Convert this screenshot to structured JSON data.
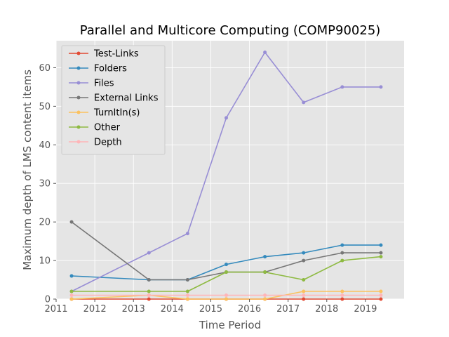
{
  "chart_data": {
    "type": "line",
    "title": "Parallel and Multicore Computing (COMP90025)",
    "xlabel": "Time Period",
    "ylabel": "Maximum depth of LMS content items",
    "xlim": [
      2011,
      2020
    ],
    "ylim": [
      0,
      67
    ],
    "xticks": [
      2011,
      2012,
      2013,
      2014,
      2015,
      2016,
      2017,
      2018,
      2019
    ],
    "yticks": [
      0,
      10,
      20,
      30,
      40,
      50,
      60
    ],
    "grid": true,
    "legend_position": "upper-left",
    "x": [
      2011.4,
      2013.4,
      2014.4,
      2015.4,
      2016.4,
      2017.4,
      2018.4,
      2019.4
    ],
    "series": [
      {
        "name": "Test-Links",
        "color": "#E24A33",
        "values": [
          0,
          0,
          0,
          0,
          0,
          0,
          0,
          0
        ]
      },
      {
        "name": "Folders",
        "color": "#348ABD",
        "values": [
          6,
          5,
          5,
          9,
          11,
          12,
          14,
          14
        ]
      },
      {
        "name": "Files",
        "color": "#988ED5",
        "values": [
          2,
          12,
          17,
          47,
          64,
          51,
          55,
          55
        ]
      },
      {
        "name": "External Links",
        "color": "#777777",
        "values": [
          20,
          5,
          5,
          7,
          7,
          10,
          12,
          12
        ]
      },
      {
        "name": "TurnItIn(s)",
        "color": "#FBC15E",
        "values": [
          0,
          1,
          0,
          0,
          0,
          2,
          2,
          2
        ]
      },
      {
        "name": "Other",
        "color": "#8EBA42",
        "values": [
          2,
          2,
          2,
          7,
          7,
          5,
          10,
          11
        ]
      },
      {
        "name": "Depth",
        "color": "#FFB5B8",
        "values": [
          1,
          1,
          1,
          1,
          1,
          1,
          1,
          1
        ]
      }
    ]
  }
}
